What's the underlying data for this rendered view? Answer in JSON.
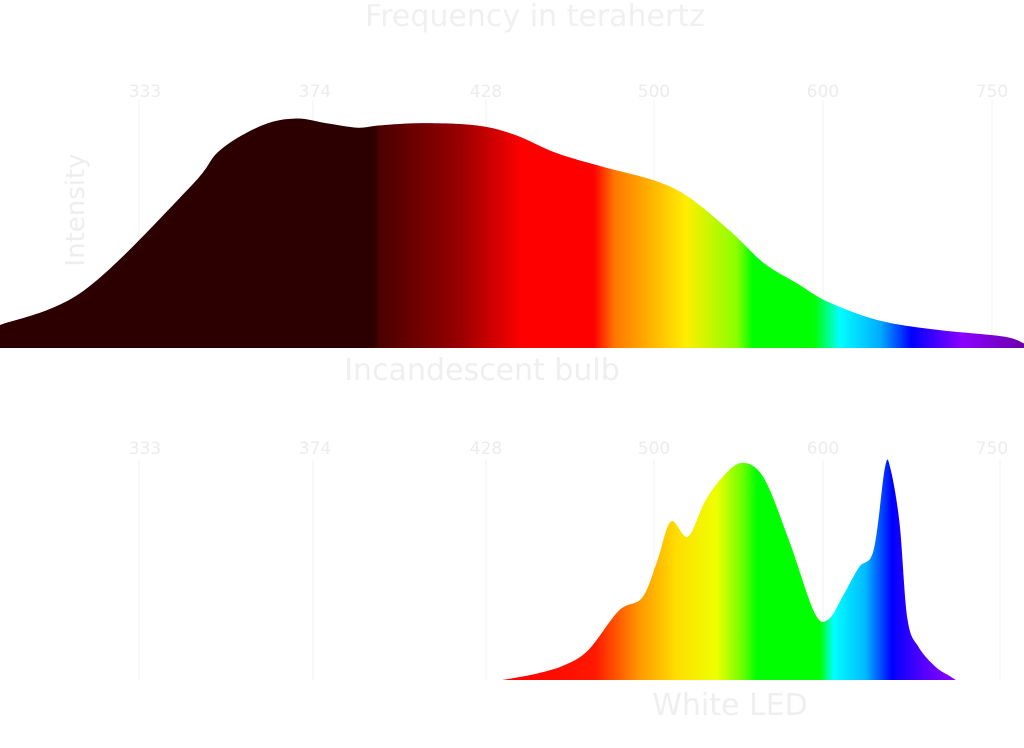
{
  "figure": {
    "title": "Frequency in terahertz",
    "ylabel": "Intensity",
    "tick_labels": [
      "333",
      "374",
      "428",
      "500",
      "600",
      "750"
    ],
    "text_color": "#efefef"
  },
  "chart_data": [
    {
      "type": "area",
      "label": "Incandescent bulb",
      "xlabel": "Frequency in terahertz",
      "ylabel": "Intensity",
      "x_axis_frequency_thz": true,
      "grid": true,
      "x": [
        300,
        320,
        345,
        352,
        362,
        370,
        378,
        388,
        395,
        408,
        425,
        440,
        458,
        478,
        500,
        520,
        545,
        565,
        585,
        605,
        650,
        700,
        760,
        810
      ],
      "y": [
        0.1,
        0.25,
        0.7,
        0.86,
        0.97,
        1.0,
        0.98,
        0.96,
        0.97,
        0.98,
        0.97,
        0.93,
        0.85,
        0.79,
        0.73,
        0.66,
        0.51,
        0.37,
        0.28,
        0.2,
        0.12,
        0.08,
        0.05,
        0.02
      ],
      "ylim": [
        0,
        1.05
      ],
      "spectrum_colors": [
        "#2c0000",
        "#2c0000",
        "#5c0000",
        "#b00000",
        "#ff0000",
        "#ff8800",
        "#ffff00",
        "#00ff00",
        "#00ffff",
        "#0000ff",
        "#8b00ff"
      ]
    },
    {
      "type": "area",
      "label": "White LED",
      "xlabel": "Frequency in terahertz",
      "ylabel": "Intensity",
      "grid": true,
      "x": [
        435,
        450,
        462,
        472,
        485,
        495,
        502,
        510,
        520,
        530,
        540,
        552,
        565,
        580,
        595,
        605,
        618,
        632,
        645,
        655,
        660,
        668,
        675,
        685,
        700,
        712,
        718
      ],
      "y": [
        0.0,
        0.03,
        0.07,
        0.14,
        0.32,
        0.38,
        0.55,
        0.73,
        0.66,
        0.82,
        0.93,
        1.0,
        0.93,
        0.64,
        0.31,
        0.28,
        0.39,
        0.52,
        0.6,
        0.98,
        0.97,
        0.72,
        0.28,
        0.15,
        0.06,
        0.02,
        0.0
      ],
      "ylim": [
        0,
        1.05
      ],
      "spectrum_colors": [
        "#ff0000",
        "#ff6600",
        "#ffcc00",
        "#eeff00",
        "#00ff00",
        "#00ff00",
        "#00ffff",
        "#0077ff",
        "#0000ff",
        "#8b00ff"
      ]
    }
  ]
}
